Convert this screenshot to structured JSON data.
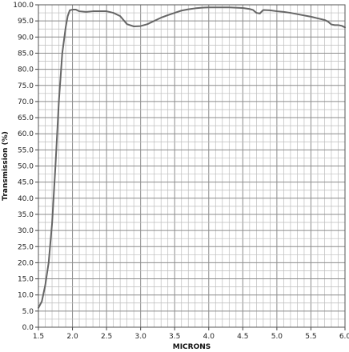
{
  "chart_data": {
    "type": "line",
    "title": "",
    "xlabel": "MICRONS",
    "ylabel": "Transmission (%)",
    "xlim": [
      1.5,
      6.0
    ],
    "ylim": [
      0,
      100
    ],
    "x_ticks": [
      "1.5",
      "2.0",
      "2.5",
      "3.0",
      "3.5",
      "4.0",
      "4.5",
      "5.0",
      "5.5",
      "6.0"
    ],
    "y_ticks": [
      "0.0",
      "5.0",
      "10.0",
      "15.0",
      "20.0",
      "25.0",
      "30.0",
      "35.0",
      "40.0",
      "45.0",
      "50.0",
      "55.0",
      "60.0",
      "65.0",
      "70.0",
      "75.0",
      "80.0",
      "85.0",
      "90.0",
      "95.0",
      "100.0"
    ],
    "grid": true,
    "line_color": "#666666",
    "series": [
      {
        "x": [
          1.5,
          1.55,
          1.6,
          1.65,
          1.7,
          1.75,
          1.8,
          1.85,
          1.9,
          1.93,
          1.96,
          2.0,
          2.05,
          2.1,
          2.2,
          2.3,
          2.4,
          2.5,
          2.6,
          2.7,
          2.8,
          2.9,
          3.0,
          3.1,
          3.2,
          3.3,
          3.4,
          3.5,
          3.6,
          3.7,
          3.8,
          3.9,
          4.0,
          4.1,
          4.2,
          4.3,
          4.4,
          4.5,
          4.6,
          4.65,
          4.7,
          4.75,
          4.8,
          4.9,
          5.0,
          5.1,
          5.2,
          5.3,
          5.4,
          5.5,
          5.6,
          5.7,
          5.75,
          5.8,
          5.85,
          5.9,
          5.95,
          6.0
        ],
        "y": [
          6.0,
          8.0,
          13.0,
          20.0,
          32.0,
          50.0,
          70.0,
          85.0,
          93.0,
          96.5,
          98.3,
          98.5,
          98.5,
          98.0,
          97.8,
          98.0,
          98.0,
          98.0,
          97.5,
          96.5,
          94.0,
          93.3,
          93.4,
          94.0,
          95.0,
          96.0,
          96.8,
          97.5,
          98.2,
          98.6,
          98.9,
          99.1,
          99.2,
          99.2,
          99.2,
          99.2,
          99.1,
          99.0,
          98.7,
          98.4,
          97.5,
          97.3,
          98.4,
          98.3,
          98.0,
          97.8,
          97.5,
          97.1,
          96.7,
          96.3,
          95.8,
          95.3,
          94.8,
          93.9,
          93.7,
          93.7,
          93.5,
          93.0
        ]
      }
    ]
  }
}
